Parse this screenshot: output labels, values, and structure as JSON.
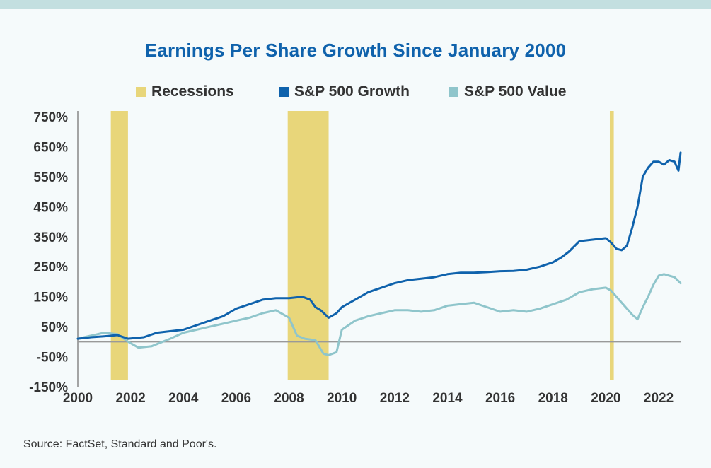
{
  "chart_data": {
    "type": "line",
    "title": "Earnings Per Share Growth Since January 2000",
    "xlabel": "",
    "ylabel": "",
    "xlim": [
      2000,
      2022.83
    ],
    "ylim": [
      -150,
      750
    ],
    "x_ticks": [
      "2000",
      "2002",
      "2004",
      "2006",
      "2008",
      "2010",
      "2012",
      "2014",
      "2016",
      "2018",
      "2020",
      "2022"
    ],
    "y_ticks": [
      "750%",
      "650%",
      "550%",
      "450%",
      "350%",
      "250%",
      "150%",
      "50%",
      "-50%",
      "-150%"
    ],
    "legend": [
      {
        "label": "Recessions",
        "color": "#e8d67a"
      },
      {
        "label": "S&P 500 Growth",
        "color": "#0f62ac"
      },
      {
        "label": "S&P 500 Value",
        "color": "#8fc5cb"
      }
    ],
    "recessions": [
      [
        2001.25,
        2001.9
      ],
      [
        2007.95,
        2009.5
      ],
      [
        2020.15,
        2020.3
      ]
    ],
    "series": [
      {
        "name": "S&P 500 Growth",
        "color": "#0f62ac",
        "x": [
          2000,
          2000.5,
          2001,
          2001.5,
          2001.9,
          2002.5,
          2003,
          2003.5,
          2004,
          2004.5,
          2005,
          2005.5,
          2006,
          2006.5,
          2007,
          2007.5,
          2008,
          2008.5,
          2008.8,
          2009,
          2009.2,
          2009.5,
          2009.8,
          2010,
          2010.5,
          2011,
          2011.5,
          2012,
          2012.5,
          2013,
          2013.5,
          2014,
          2014.5,
          2015,
          2015.5,
          2016,
          2016.5,
          2017,
          2017.5,
          2018,
          2018.3,
          2018.6,
          2019,
          2019.5,
          2020,
          2020.2,
          2020.4,
          2020.6,
          2020.8,
          2021,
          2021.2,
          2021.4,
          2021.6,
          2021.8,
          2022,
          2022.2,
          2022.4,
          2022.6,
          2022.75,
          2022.83
        ],
        "values": [
          10,
          15,
          18,
          22,
          10,
          15,
          30,
          35,
          40,
          55,
          70,
          85,
          110,
          125,
          140,
          145,
          145,
          150,
          140,
          115,
          105,
          80,
          95,
          115,
          140,
          165,
          180,
          195,
          205,
          210,
          215,
          225,
          230,
          230,
          232,
          235,
          236,
          240,
          250,
          265,
          280,
          300,
          335,
          340,
          345,
          330,
          310,
          305,
          320,
          380,
          450,
          550,
          580,
          600,
          600,
          590,
          605,
          600,
          570,
          630
        ]
      },
      {
        "name": "S&P 500 Value",
        "color": "#8fc5cb",
        "x": [
          2000,
          2000.5,
          2001,
          2001.5,
          2001.9,
          2002.3,
          2002.8,
          2003.5,
          2004,
          2004.5,
          2005,
          2005.5,
          2006,
          2006.5,
          2007,
          2007.5,
          2008,
          2008.3,
          2008.6,
          2009,
          2009.3,
          2009.5,
          2009.8,
          2010,
          2010.5,
          2011,
          2011.5,
          2012,
          2012.5,
          2013,
          2013.5,
          2014,
          2014.5,
          2015,
          2015.5,
          2016,
          2016.5,
          2017,
          2017.5,
          2018,
          2018.5,
          2019,
          2019.5,
          2020,
          2020.2,
          2020.5,
          2020.8,
          2021,
          2021.2,
          2021.4,
          2021.6,
          2021.8,
          2022,
          2022.2,
          2022.4,
          2022.6,
          2022.83
        ],
        "values": [
          10,
          20,
          30,
          25,
          0,
          -20,
          -15,
          10,
          30,
          40,
          50,
          60,
          70,
          80,
          95,
          105,
          80,
          20,
          10,
          5,
          -40,
          -45,
          -35,
          40,
          70,
          85,
          95,
          105,
          105,
          100,
          105,
          120,
          125,
          130,
          115,
          100,
          105,
          100,
          110,
          125,
          140,
          165,
          175,
          180,
          170,
          140,
          110,
          90,
          75,
          115,
          150,
          190,
          220,
          225,
          220,
          215,
          195
        ]
      }
    ]
  },
  "source": "Source: FactSet, Standard and Poor's."
}
